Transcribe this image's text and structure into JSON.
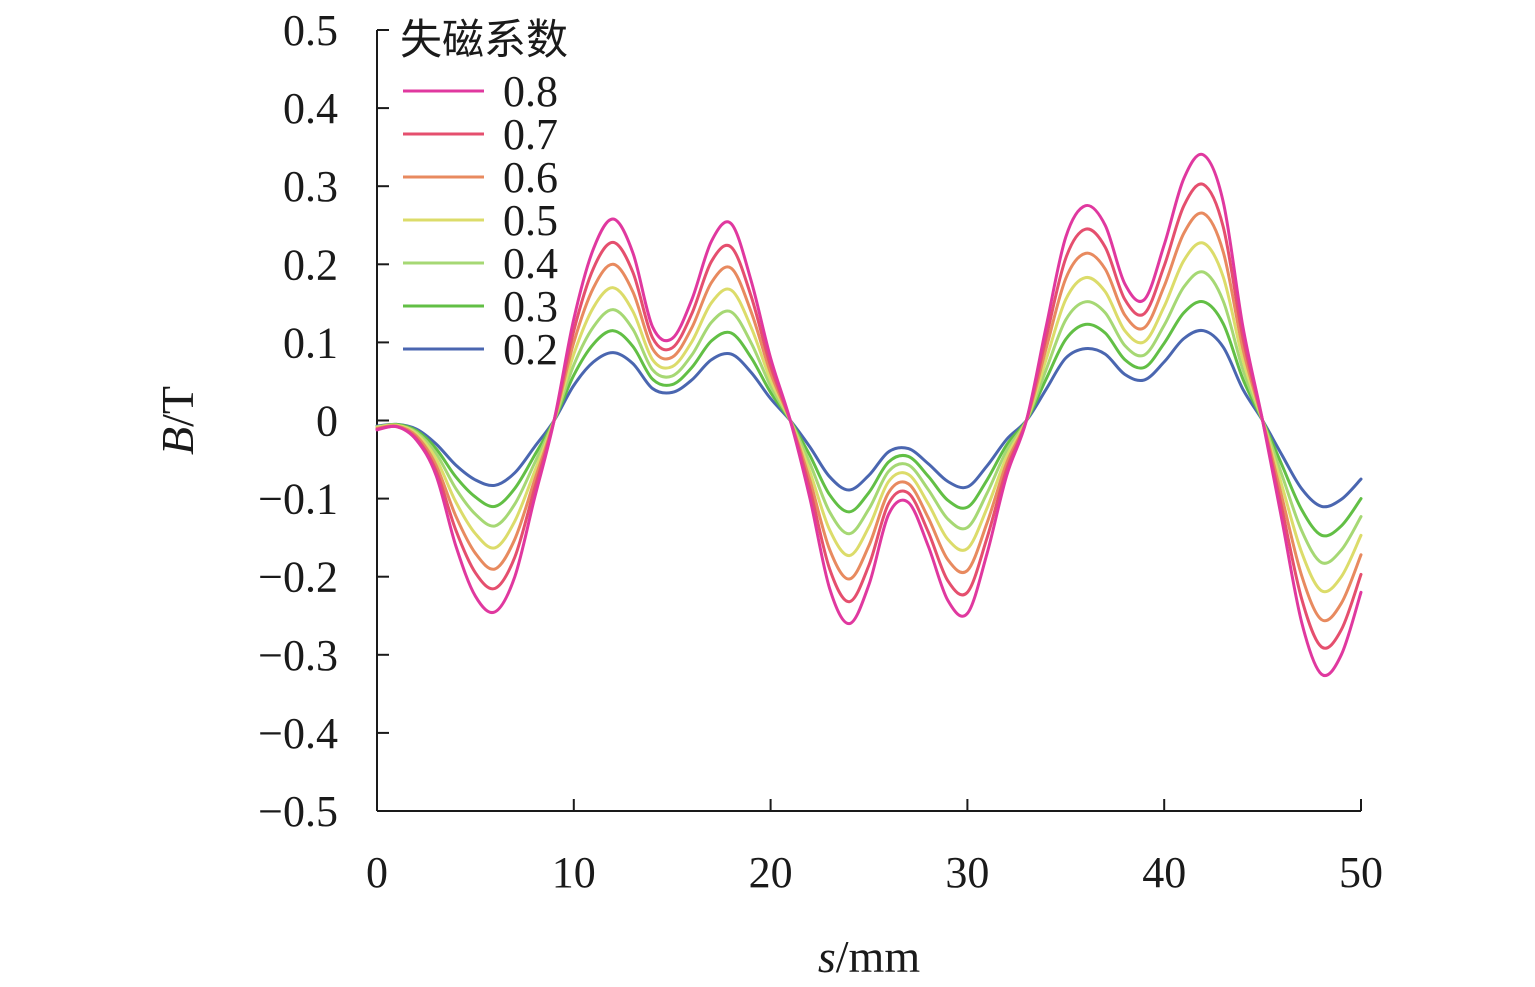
{
  "chart_data": {
    "type": "line",
    "xlabel_var": "s",
    "xlabel_unit": "/mm",
    "ylabel_var": "B",
    "ylabel_unit": "/T",
    "xlim": [
      0,
      50
    ],
    "ylim": [
      -0.5,
      0.5
    ],
    "xticks": [
      0,
      10,
      20,
      30,
      40,
      50
    ],
    "xtick_labels": [
      "0",
      "10",
      "20",
      "30",
      "40",
      "50"
    ],
    "yticks": [
      0.5,
      0.4,
      0.3,
      0.2,
      0.1,
      0,
      -0.1,
      -0.2,
      -0.3,
      -0.4,
      -0.5
    ],
    "ytick_labels": [
      "0.5",
      "0.4",
      "0.3",
      "0.2",
      "0.1",
      "0",
      "−0.1",
      "−0.2",
      "−0.3",
      "−0.4",
      "−0.5"
    ],
    "grid": false,
    "legend": {
      "title": "失磁系数",
      "placement": "top-left"
    },
    "x": [
      0,
      1,
      2,
      3,
      4,
      5,
      6,
      7,
      8,
      9,
      10,
      11,
      12,
      13,
      14,
      15,
      16,
      17,
      18,
      19,
      20,
      21,
      22,
      23,
      24,
      25,
      26,
      27,
      28,
      29,
      30,
      31,
      32,
      33,
      34,
      35,
      36,
      37,
      38,
      39,
      40,
      41,
      42,
      43,
      44,
      45,
      46,
      47,
      48,
      49,
      50
    ],
    "series": [
      {
        "name": "0.8",
        "color": "#e0389f",
        "values": [
          -0.012,
          -0.008,
          -0.025,
          -0.07,
          -0.16,
          -0.225,
          -0.245,
          -0.2,
          -0.1,
          0.0,
          0.13,
          0.22,
          0.258,
          0.215,
          0.12,
          0.105,
          0.155,
          0.23,
          0.252,
          0.18,
          0.08,
          0.0,
          -0.1,
          -0.215,
          -0.26,
          -0.21,
          -0.12,
          -0.105,
          -0.16,
          -0.23,
          -0.247,
          -0.17,
          -0.07,
          0.0,
          0.12,
          0.235,
          0.275,
          0.25,
          0.175,
          0.155,
          0.225,
          0.31,
          0.34,
          0.28,
          0.12,
          0.0,
          -0.13,
          -0.26,
          -0.325,
          -0.3,
          -0.22
        ]
      },
      {
        "name": "0.7",
        "color": "#e54f6e",
        "values": [
          -0.011,
          -0.008,
          -0.023,
          -0.064,
          -0.14,
          -0.195,
          -0.215,
          -0.175,
          -0.088,
          0.0,
          0.115,
          0.195,
          0.228,
          0.19,
          0.106,
          0.093,
          0.137,
          0.204,
          0.222,
          0.16,
          0.07,
          0.0,
          -0.088,
          -0.19,
          -0.232,
          -0.185,
          -0.106,
          -0.093,
          -0.142,
          -0.205,
          -0.22,
          -0.15,
          -0.062,
          0.0,
          0.106,
          0.208,
          0.245,
          0.222,
          0.155,
          0.137,
          0.198,
          0.275,
          0.302,
          0.248,
          0.106,
          0.0,
          -0.115,
          -0.23,
          -0.29,
          -0.268,
          -0.197
        ]
      },
      {
        "name": "0.6",
        "color": "#e88a5f",
        "values": [
          -0.01,
          -0.007,
          -0.02,
          -0.057,
          -0.122,
          -0.17,
          -0.19,
          -0.152,
          -0.077,
          0.0,
          0.1,
          0.17,
          0.2,
          0.165,
          0.092,
          0.081,
          0.119,
          0.177,
          0.195,
          0.14,
          0.061,
          0.0,
          -0.077,
          -0.165,
          -0.203,
          -0.16,
          -0.092,
          -0.081,
          -0.124,
          -0.178,
          -0.192,
          -0.131,
          -0.054,
          0.0,
          0.092,
          0.182,
          0.214,
          0.194,
          0.135,
          0.119,
          0.172,
          0.24,
          0.265,
          0.216,
          0.092,
          0.0,
          -0.1,
          -0.2,
          -0.255,
          -0.234,
          -0.172
        ]
      },
      {
        "name": "0.5",
        "color": "#dcdc6a",
        "values": [
          -0.009,
          -0.006,
          -0.017,
          -0.049,
          -0.104,
          -0.145,
          -0.163,
          -0.129,
          -0.066,
          0.0,
          0.085,
          0.145,
          0.17,
          0.14,
          0.078,
          0.069,
          0.101,
          0.151,
          0.167,
          0.12,
          0.052,
          0.0,
          -0.066,
          -0.14,
          -0.173,
          -0.136,
          -0.078,
          -0.069,
          -0.106,
          -0.152,
          -0.164,
          -0.112,
          -0.046,
          0.0,
          0.078,
          0.155,
          0.183,
          0.165,
          0.115,
          0.101,
          0.146,
          0.205,
          0.227,
          0.184,
          0.078,
          0.0,
          -0.085,
          -0.17,
          -0.218,
          -0.2,
          -0.147
        ]
      },
      {
        "name": "0.4",
        "color": "#a6d874",
        "values": [
          -0.008,
          -0.006,
          -0.015,
          -0.042,
          -0.087,
          -0.12,
          -0.135,
          -0.107,
          -0.055,
          0.0,
          0.071,
          0.12,
          0.142,
          0.117,
          0.065,
          0.057,
          0.084,
          0.126,
          0.139,
          0.1,
          0.044,
          0.0,
          -0.055,
          -0.117,
          -0.145,
          -0.113,
          -0.065,
          -0.057,
          -0.088,
          -0.126,
          -0.137,
          -0.093,
          -0.038,
          0.0,
          0.065,
          0.129,
          0.152,
          0.138,
          0.096,
          0.084,
          0.122,
          0.171,
          0.19,
          0.153,
          0.065,
          0.0,
          -0.071,
          -0.142,
          -0.182,
          -0.166,
          -0.123
        ]
      },
      {
        "name": "0.3",
        "color": "#62bf45",
        "values": [
          -0.008,
          -0.005,
          -0.013,
          -0.036,
          -0.072,
          -0.098,
          -0.11,
          -0.087,
          -0.045,
          0.0,
          0.058,
          0.098,
          0.115,
          0.095,
          0.053,
          0.046,
          0.068,
          0.102,
          0.112,
          0.081,
          0.036,
          0.0,
          -0.045,
          -0.095,
          -0.117,
          -0.092,
          -0.053,
          -0.046,
          -0.071,
          -0.102,
          -0.111,
          -0.076,
          -0.031,
          0.0,
          0.053,
          0.104,
          0.123,
          0.112,
          0.078,
          0.068,
          0.099,
          0.138,
          0.152,
          0.124,
          0.053,
          0.0,
          -0.058,
          -0.115,
          -0.147,
          -0.135,
          -0.1
        ]
      },
      {
        "name": "0.2",
        "color": "#4a66b0",
        "values": [
          -0.007,
          -0.005,
          -0.011,
          -0.03,
          -0.057,
          -0.076,
          -0.083,
          -0.067,
          -0.034,
          0.0,
          0.045,
          0.075,
          0.087,
          0.073,
          0.041,
          0.036,
          0.052,
          0.078,
          0.085,
          0.062,
          0.028,
          0.0,
          -0.034,
          -0.072,
          -0.089,
          -0.07,
          -0.04,
          -0.036,
          -0.055,
          -0.078,
          -0.085,
          -0.058,
          -0.024,
          0.0,
          0.04,
          0.08,
          0.092,
          0.085,
          0.059,
          0.052,
          0.075,
          0.105,
          0.115,
          0.094,
          0.04,
          0.0,
          -0.045,
          -0.088,
          -0.11,
          -0.101,
          -0.075
        ]
      }
    ]
  }
}
